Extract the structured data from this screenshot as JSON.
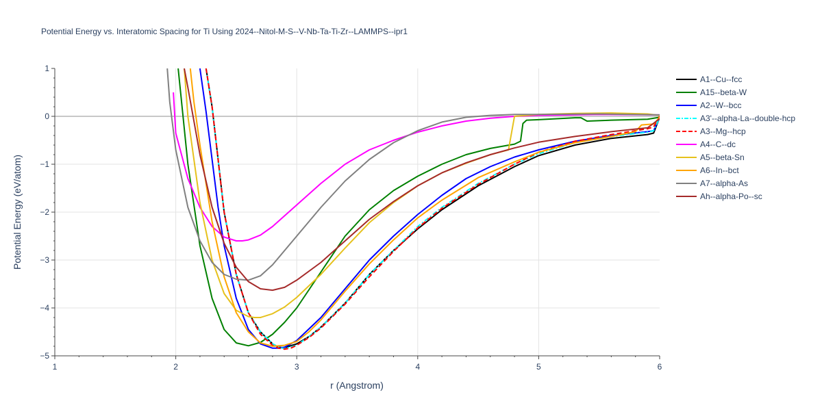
{
  "chart_data": {
    "type": "line",
    "title": "Potential Energy vs. Interatomic Spacing for Ti Using 2024--Nitol-M-S--V-Nb-Ta-Ti-Zr--LAMMPS--ipr1",
    "xlabel": "r (Angstrom)",
    "ylabel": "Potential Energy (eV/atom)",
    "xlim": [
      1,
      6
    ],
    "ylim": [
      -5,
      1
    ],
    "xticks": [
      1,
      2,
      3,
      4,
      5,
      6
    ],
    "yticks": [
      -5,
      -4,
      -3,
      -2,
      -1,
      0,
      1
    ],
    "grid": true,
    "legend_position": "right",
    "series": [
      {
        "name": "A1--Cu--fcc",
        "color": "#000000",
        "dash": "solid",
        "x": [
          2.25,
          2.3,
          2.35,
          2.4,
          2.5,
          2.6,
          2.7,
          2.8,
          2.85,
          2.9,
          3.0,
          3.1,
          3.2,
          3.4,
          3.6,
          3.8,
          4.0,
          4.2,
          4.5,
          4.8,
          5.0,
          5.3,
          5.6,
          5.9,
          5.95,
          6.0
        ],
        "y": [
          1.0,
          0.2,
          -0.9,
          -2.0,
          -3.3,
          -4.1,
          -4.5,
          -4.75,
          -4.82,
          -4.83,
          -4.75,
          -4.6,
          -4.4,
          -3.9,
          -3.3,
          -2.8,
          -2.35,
          -1.95,
          -1.45,
          -1.05,
          -0.82,
          -0.6,
          -0.46,
          -0.38,
          -0.35,
          -0.02
        ]
      },
      {
        "name": "A15--beta-W",
        "color": "#008000",
        "dash": "solid",
        "x": [
          2.02,
          2.1,
          2.2,
          2.3,
          2.4,
          2.5,
          2.6,
          2.7,
          2.8,
          2.9,
          3.0,
          3.2,
          3.4,
          3.6,
          3.8,
          4.0,
          4.2,
          4.4,
          4.6,
          4.8,
          4.85,
          4.87,
          4.9,
          5.0,
          5.3,
          5.35,
          5.4,
          5.6,
          5.9,
          6.0
        ],
        "y": [
          1.0,
          -1.0,
          -2.7,
          -3.8,
          -4.45,
          -4.73,
          -4.79,
          -4.72,
          -4.55,
          -4.3,
          -4.0,
          -3.25,
          -2.5,
          -1.95,
          -1.55,
          -1.25,
          -1.0,
          -0.8,
          -0.67,
          -0.58,
          -0.52,
          -0.15,
          -0.08,
          -0.07,
          -0.03,
          -0.03,
          -0.1,
          -0.08,
          -0.06,
          -0.02
        ]
      },
      {
        "name": "A2--W--bcc",
        "color": "#0000ff",
        "dash": "solid",
        "x": [
          2.2,
          2.25,
          2.3,
          2.35,
          2.4,
          2.5,
          2.6,
          2.7,
          2.8,
          2.85,
          2.9,
          3.0,
          3.2,
          3.4,
          3.6,
          3.8,
          4.0,
          4.2,
          4.4,
          4.6,
          4.8,
          5.0,
          5.3,
          5.6,
          5.9,
          5.95,
          6.0
        ],
        "y": [
          1.0,
          0.1,
          -0.9,
          -1.9,
          -2.7,
          -3.8,
          -4.45,
          -4.75,
          -4.84,
          -4.84,
          -4.82,
          -4.68,
          -4.2,
          -3.6,
          -3.0,
          -2.5,
          -2.05,
          -1.65,
          -1.3,
          -1.05,
          -0.85,
          -0.7,
          -0.52,
          -0.4,
          -0.32,
          -0.3,
          -0.02
        ]
      },
      {
        "name": "A3'--alpha-La--double-hcp",
        "color": "#00ffff",
        "dash": "dashdot",
        "x": [
          2.25,
          2.3,
          2.35,
          2.4,
          2.5,
          2.6,
          2.7,
          2.8,
          2.85,
          2.9,
          3.0,
          3.1,
          3.2,
          3.4,
          3.6,
          3.8,
          4.0,
          4.2,
          4.5,
          4.8,
          5.0,
          5.3,
          5.6,
          5.9,
          5.95,
          6.0
        ],
        "y": [
          1.0,
          0.2,
          -0.9,
          -2.0,
          -3.3,
          -4.1,
          -4.5,
          -4.75,
          -4.82,
          -4.85,
          -4.78,
          -4.6,
          -4.4,
          -3.9,
          -3.3,
          -2.8,
          -2.3,
          -1.9,
          -1.4,
          -1.0,
          -0.78,
          -0.55,
          -0.42,
          -0.33,
          -0.3,
          -0.02
        ]
      },
      {
        "name": "A3--Mg--hcp",
        "color": "#ff0000",
        "dash": "dash",
        "x": [
          2.25,
          2.3,
          2.35,
          2.4,
          2.5,
          2.6,
          2.7,
          2.8,
          2.85,
          2.9,
          2.95,
          3.0,
          3.1,
          3.2,
          3.4,
          3.6,
          3.8,
          4.0,
          4.2,
          4.5,
          4.8,
          5.0,
          5.3,
          5.6,
          5.9,
          5.95,
          6.0
        ],
        "y": [
          1.0,
          0.2,
          -0.9,
          -2.0,
          -3.3,
          -4.1,
          -4.55,
          -4.78,
          -4.84,
          -4.86,
          -4.84,
          -4.78,
          -4.62,
          -4.42,
          -3.92,
          -3.35,
          -2.82,
          -2.33,
          -1.92,
          -1.42,
          -1.0,
          -0.75,
          -0.52,
          -0.38,
          -0.26,
          -0.22,
          0.0
        ]
      },
      {
        "name": "A4--C--dc",
        "color": "#ff00ff",
        "dash": "solid",
        "x": [
          1.98,
          2.0,
          2.1,
          2.2,
          2.3,
          2.4,
          2.5,
          2.55,
          2.6,
          2.7,
          2.8,
          3.0,
          3.2,
          3.4,
          3.6,
          3.8,
          4.0,
          4.2,
          4.4,
          4.6,
          4.8,
          5.0,
          5.5,
          6.0
        ],
        "y": [
          0.5,
          -0.35,
          -1.3,
          -1.9,
          -2.3,
          -2.52,
          -2.6,
          -2.6,
          -2.58,
          -2.48,
          -2.3,
          -1.85,
          -1.4,
          -1.0,
          -0.7,
          -0.5,
          -0.33,
          -0.2,
          -0.1,
          -0.04,
          0.0,
          0.02,
          0.04,
          0.03
        ]
      },
      {
        "name": "A5--beta-Sn",
        "color": "#e6c11c",
        "dash": "solid",
        "x": [
          2.07,
          2.1,
          2.2,
          2.3,
          2.4,
          2.5,
          2.6,
          2.65,
          2.7,
          2.8,
          2.9,
          3.0,
          3.2,
          3.4,
          3.6,
          3.8,
          4.0,
          4.2,
          4.4,
          4.6,
          4.75,
          4.8,
          5.0,
          5.3,
          5.6,
          5.9,
          6.0
        ],
        "y": [
          1.0,
          0.0,
          -1.8,
          -3.0,
          -3.7,
          -4.05,
          -4.18,
          -4.2,
          -4.2,
          -4.12,
          -3.98,
          -3.78,
          -3.3,
          -2.75,
          -2.22,
          -1.8,
          -1.45,
          -1.18,
          -0.98,
          -0.8,
          -0.7,
          0.0,
          0.04,
          0.06,
          0.07,
          0.05,
          0.02
        ]
      },
      {
        "name": "A6--In--bct",
        "color": "#ffa500",
        "dash": "solid",
        "x": [
          2.12,
          2.15,
          2.2,
          2.3,
          2.4,
          2.5,
          2.6,
          2.7,
          2.8,
          2.9,
          3.0,
          3.1,
          3.2,
          3.4,
          3.6,
          3.8,
          4.0,
          4.2,
          4.5,
          4.8,
          5.0,
          5.3,
          5.6,
          5.8,
          5.85,
          5.9,
          5.95,
          6.0
        ],
        "y": [
          1.0,
          0.3,
          -0.6,
          -2.2,
          -3.35,
          -4.1,
          -4.5,
          -4.73,
          -4.8,
          -4.78,
          -4.7,
          -4.5,
          -4.25,
          -3.65,
          -3.08,
          -2.58,
          -2.12,
          -1.75,
          -1.28,
          -0.95,
          -0.75,
          -0.55,
          -0.42,
          -0.32,
          -0.18,
          -0.17,
          -0.16,
          -0.02
        ]
      },
      {
        "name": "A7--alpha-As",
        "color": "#808080",
        "dash": "solid",
        "x": [
          1.93,
          1.95,
          2.0,
          2.1,
          2.2,
          2.3,
          2.4,
          2.5,
          2.6,
          2.7,
          2.8,
          3.0,
          3.2,
          3.4,
          3.6,
          3.8,
          4.0,
          4.2,
          4.4,
          4.6,
          4.8,
          5.0,
          5.5,
          6.0
        ],
        "y": [
          1.0,
          0.3,
          -0.7,
          -1.9,
          -2.6,
          -3.05,
          -3.3,
          -3.4,
          -3.42,
          -3.33,
          -3.1,
          -2.5,
          -1.9,
          -1.35,
          -0.9,
          -0.55,
          -0.3,
          -0.12,
          -0.02,
          0.02,
          0.04,
          0.04,
          0.05,
          0.03
        ]
      },
      {
        "name": "Ah--alpha-Po--sc",
        "color": "#a52a2a",
        "dash": "solid",
        "x": [
          2.07,
          2.1,
          2.2,
          2.3,
          2.4,
          2.5,
          2.6,
          2.7,
          2.8,
          2.9,
          3.0,
          3.2,
          3.4,
          3.6,
          3.8,
          4.0,
          4.2,
          4.4,
          4.6,
          4.8,
          5.0,
          5.3,
          5.6,
          5.9,
          6.0
        ],
        "y": [
          1.0,
          0.6,
          -0.8,
          -1.9,
          -2.65,
          -3.15,
          -3.45,
          -3.6,
          -3.63,
          -3.57,
          -3.42,
          -3.05,
          -2.6,
          -2.15,
          -1.78,
          -1.45,
          -1.18,
          -0.97,
          -0.8,
          -0.66,
          -0.54,
          -0.42,
          -0.32,
          -0.24,
          -0.05
        ]
      }
    ]
  }
}
